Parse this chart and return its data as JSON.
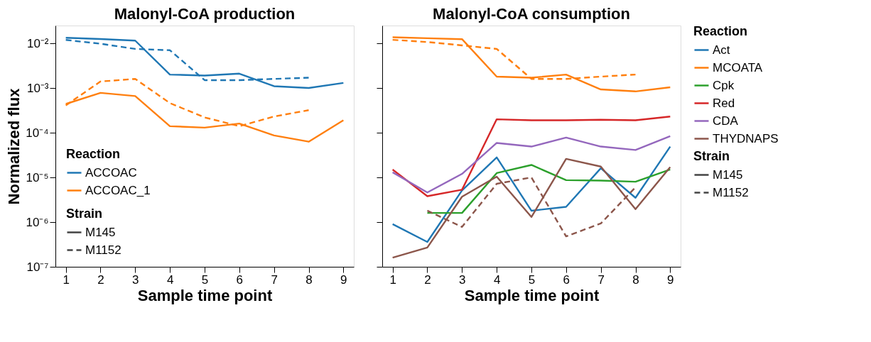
{
  "chart_data": [
    {
      "type": "line",
      "title": "Malonyl-CoA production",
      "xlabel": "Sample time point",
      "ylabel": "Normalized flux",
      "legend_title": [
        "Reaction",
        "Strain"
      ],
      "annotations": [
        "M145",
        "M1152"
      ],
      "legend": "bottom left",
      "log": "y",
      "grid": false,
      "x": [
        1,
        2,
        3,
        4,
        5,
        6,
        7,
        8,
        9
      ],
      "xlim": [
        0.7,
        9.3
      ],
      "xticks": [
        1,
        2,
        3,
        4,
        5,
        6,
        7,
        8,
        9
      ],
      "ylim": [
        1e-07,
        0.025
      ],
      "yticks": [
        {
          "value": 1e-07,
          "label": "10⁻⁷"
        },
        {
          "value": 1e-06,
          "label": "10⁻⁶"
        },
        {
          "value": 1e-05,
          "label": "10⁻⁵"
        },
        {
          "value": 0.0001,
          "label": "10⁻⁴"
        },
        {
          "value": 0.001,
          "label": "10⁻³"
        },
        {
          "value": 0.01,
          "label": "10⁻²"
        }
      ],
      "series": [
        {
          "name": "ACCOAC",
          "color": "#1f77b4",
          "line_style": "solid",
          "values": [
            0.0133,
            0.0125,
            0.0115,
            0.002,
            0.0019,
            0.0021,
            0.0011,
            0.001,
            0.0013
          ]
        },
        {
          "color": "#1f77b4",
          "line_style": "dashed",
          "values": [
            0.0119,
            0.0098,
            0.0075,
            0.007,
            0.0015,
            0.0015,
            0.0016,
            0.0017,
            null
          ]
        },
        {
          "name": "ACCOAC_1",
          "color": "#ff7f0e",
          "line_style": "solid",
          "values": [
            0.00044,
            0.00078,
            0.00066,
            0.00014,
            0.00013,
            0.00016,
            8.7e-05,
            6.3e-05,
            0.00019
          ]
        },
        {
          "color": "#ff7f0e",
          "line_style": "dashed",
          "values": [
            0.00041,
            0.0014,
            0.0016,
            0.00046,
            0.00022,
            0.00014,
            0.00023,
            0.00032,
            null
          ]
        }
      ]
    },
    {
      "type": "line",
      "title": "Malonyl-CoA consumption",
      "xlabel": "Sample time point",
      "legend_title": [
        "Reaction",
        "Strain"
      ],
      "annotations": [
        "M145",
        "M1152"
      ],
      "legend": "right",
      "log": "y",
      "grid": false,
      "tick_labels": "x",
      "x": [
        1,
        2,
        3,
        4,
        5,
        6,
        7,
        8,
        9
      ],
      "xlim": [
        0.7,
        9.3
      ],
      "xticks": [
        1,
        2,
        3,
        4,
        5,
        6,
        7,
        8,
        9
      ],
      "ylim": [
        1e-07,
        0.025
      ],
      "yticks": [
        {
          "value": 1e-07,
          "label": null
        },
        {
          "value": 1e-06,
          "label": null
        },
        {
          "value": 1e-05,
          "label": null
        },
        {
          "value": 0.0001,
          "label": null
        },
        {
          "value": 0.001,
          "label": null
        },
        {
          "value": 0.01,
          "label": null
        }
      ],
      "series": [
        {
          "name": "Act",
          "color": "#1f77b4",
          "line_style": "solid",
          "values": [
            9e-07,
            3.6e-07,
            5.1e-06,
            2.8e-05,
            1.8e-06,
            2.2e-06,
            1.6e-05,
            3.5e-06,
            4.9e-05
          ]
        },
        {
          "name": "MCOATA",
          "color": "#ff7f0e",
          "line_style": "solid",
          "values": [
            0.0137,
            0.013,
            0.0124,
            0.0018,
            0.0017,
            0.002,
            0.00093,
            0.00084,
            0.00104
          ]
        },
        {
          "color": "#ff7f0e",
          "line_style": "dashed",
          "values": [
            0.012,
            0.0107,
            0.009,
            0.0075,
            0.0016,
            0.0016,
            0.0018,
            0.002,
            null
          ]
        },
        {
          "name": "Cpk",
          "color": "#2ca02c",
          "line_style": "solid",
          "values": [
            null,
            1.6e-06,
            1.6e-06,
            1.25e-05,
            1.9e-05,
            8.7e-06,
            8.5e-06,
            8e-06,
            1.5e-05
          ]
        },
        {
          "name": "Red",
          "color": "#d62728",
          "line_style": "solid",
          "values": [
            1.5e-05,
            3.8e-06,
            5.3e-06,
            0.0002,
            0.00019,
            0.00019,
            0.000195,
            0.00019,
            0.00023
          ]
        },
        {
          "name": "CDA",
          "color": "#9467bd",
          "line_style": "solid",
          "values": [
            1.3e-05,
            4.6e-06,
            1.2e-05,
            5.9e-05,
            4.9e-05,
            7.8e-05,
            4.9e-05,
            4.1e-05,
            8.4e-05
          ]
        },
        {
          "name": "THYDNAPS",
          "color": "#8c564b",
          "line_style": "solid",
          "values": [
            1.6e-07,
            2.7e-07,
            3.7e-06,
            1.04e-05,
            1.3e-06,
            2.6e-05,
            1.75e-05,
            1.95e-06,
            1.7e-05
          ]
        },
        {
          "color": "#8c564b",
          "line_style": "dashed",
          "values": [
            null,
            1.8e-06,
            7.8e-07,
            7.2e-06,
            1e-05,
            4.8e-07,
            9.3e-07,
            6e-06,
            null
          ]
        }
      ]
    }
  ]
}
